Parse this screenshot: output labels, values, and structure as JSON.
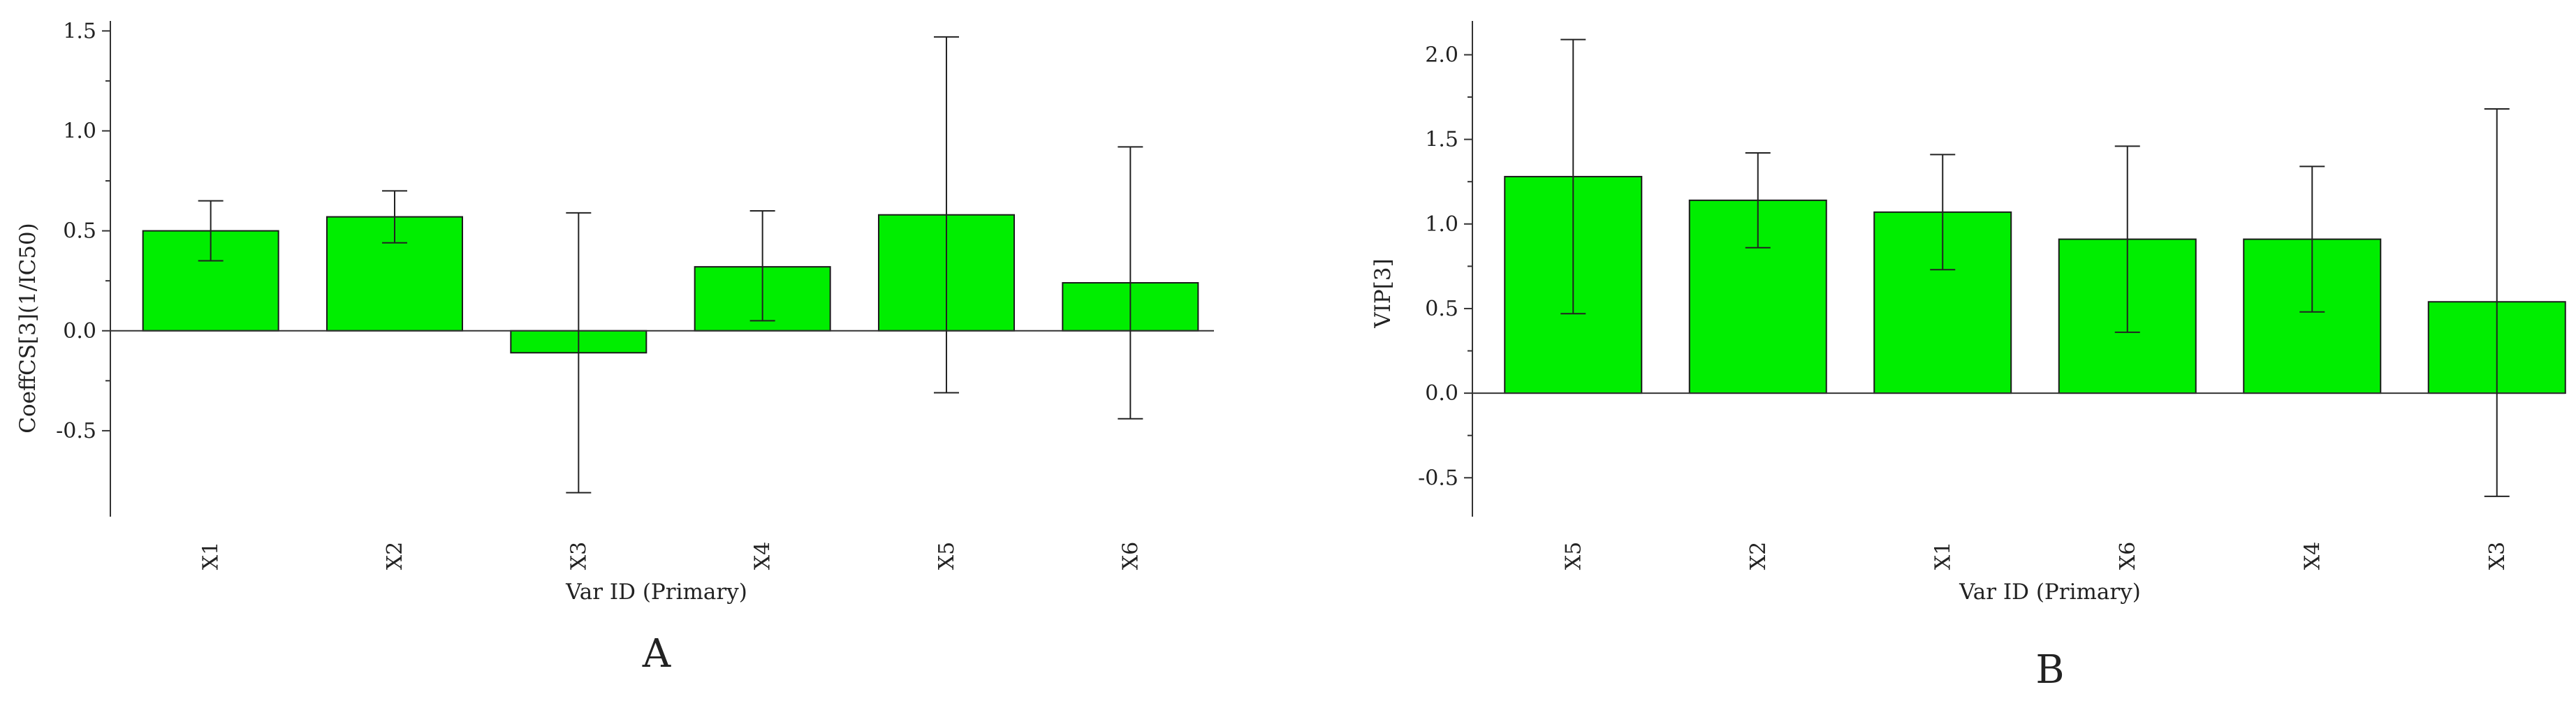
{
  "chart_data": [
    {
      "type": "bar",
      "panel_label": "A",
      "title": "",
      "xlabel": "Var ID (Primary)",
      "ylabel": "CoeffCS[3](1/IC50)",
      "categories": [
        "X1",
        "X2",
        "X3",
        "X4",
        "X5",
        "X6"
      ],
      "values": [
        0.5,
        0.57,
        -0.11,
        0.32,
        0.58,
        0.24
      ],
      "error_low": [
        0.35,
        0.44,
        -0.81,
        0.05,
        -0.31,
        -0.44
      ],
      "error_high": [
        0.65,
        0.7,
        0.59,
        0.6,
        1.47,
        0.92
      ],
      "ylim": [
        -0.93,
        1.55
      ],
      "yticks": [
        -0.5,
        0.0,
        0.5,
        1.0,
        1.5
      ],
      "ytick_labels": [
        "-0.5",
        "0.0",
        "0.5",
        "1.0",
        "1.5"
      ],
      "bar_color": "#00ee00",
      "grid": false
    },
    {
      "type": "bar",
      "panel_label": "B",
      "title": "",
      "xlabel": "Var ID (Primary)",
      "ylabel": "VIP[3]",
      "categories": [
        "X5",
        "X2",
        "X1",
        "X6",
        "X4",
        "X3"
      ],
      "values": [
        1.28,
        1.14,
        1.07,
        0.91,
        0.91,
        0.54
      ],
      "error_low": [
        0.47,
        0.86,
        0.73,
        0.36,
        0.48,
        -0.61
      ],
      "error_high": [
        2.09,
        1.42,
        1.41,
        1.46,
        1.34,
        1.68
      ],
      "ylim": [
        -0.73,
        2.2
      ],
      "yticks": [
        -0.5,
        0.0,
        0.5,
        1.0,
        1.5,
        2.0
      ],
      "ytick_labels": [
        "-0.5",
        "0.0",
        "0.5",
        "1.0",
        "1.5",
        "2.0"
      ],
      "bar_color": "#00ee00",
      "grid": false
    }
  ]
}
